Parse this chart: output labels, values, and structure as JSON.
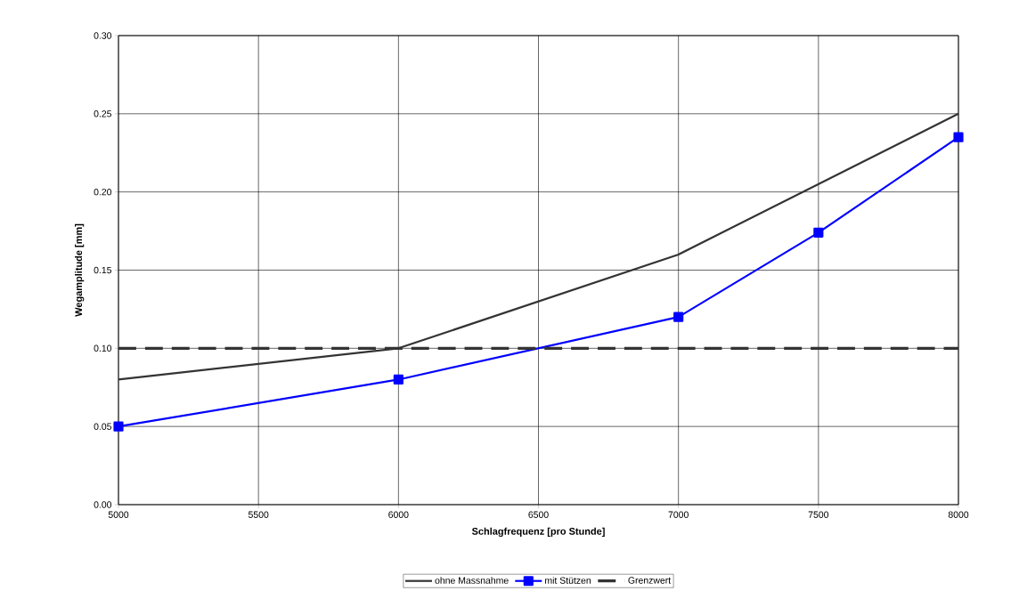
{
  "chart_data": {
    "type": "line",
    "xlabel": "Schlagfrequenz [pro Stunde]",
    "ylabel": "Wegamplitude [mm]",
    "series": [
      {
        "name": "ohne Massnahme",
        "color": "#333333",
        "marker": "none",
        "line_style": "solid",
        "x": [
          5000,
          6000,
          7000,
          8000
        ],
        "values": [
          0.08,
          0.1,
          0.16,
          0.25
        ]
      },
      {
        "name": "mit Stützen",
        "color": "#0000ff",
        "marker": "square",
        "line_style": "solid",
        "x": [
          5000,
          6000,
          7000,
          7500,
          8000
        ],
        "values": [
          0.05,
          0.08,
          0.12,
          0.174,
          0.235
        ]
      },
      {
        "name": "Grenzwert",
        "color": "#333333",
        "marker": "none",
        "line_style": "dashed",
        "x": [
          5000,
          8000
        ],
        "values": [
          0.1,
          0.1
        ]
      }
    ],
    "xlim": [
      5000,
      8000
    ],
    "ylim": [
      0,
      0.3
    ],
    "xticks": [
      5000,
      5500,
      6000,
      6500,
      7000,
      7500,
      8000
    ],
    "yticks": [
      {
        "value": 0,
        "label": "0.00"
      },
      {
        "value": 0.05,
        "label": "0.05"
      },
      {
        "value": 0.1,
        "label": "0.10"
      },
      {
        "value": 0.15,
        "label": "0.15"
      },
      {
        "value": 0.2,
        "label": "0.20"
      },
      {
        "value": 0.25,
        "label": "0.25"
      },
      {
        "value": 0.3,
        "label": "0.30"
      }
    ],
    "grid": true,
    "legend": "bottom"
  }
}
